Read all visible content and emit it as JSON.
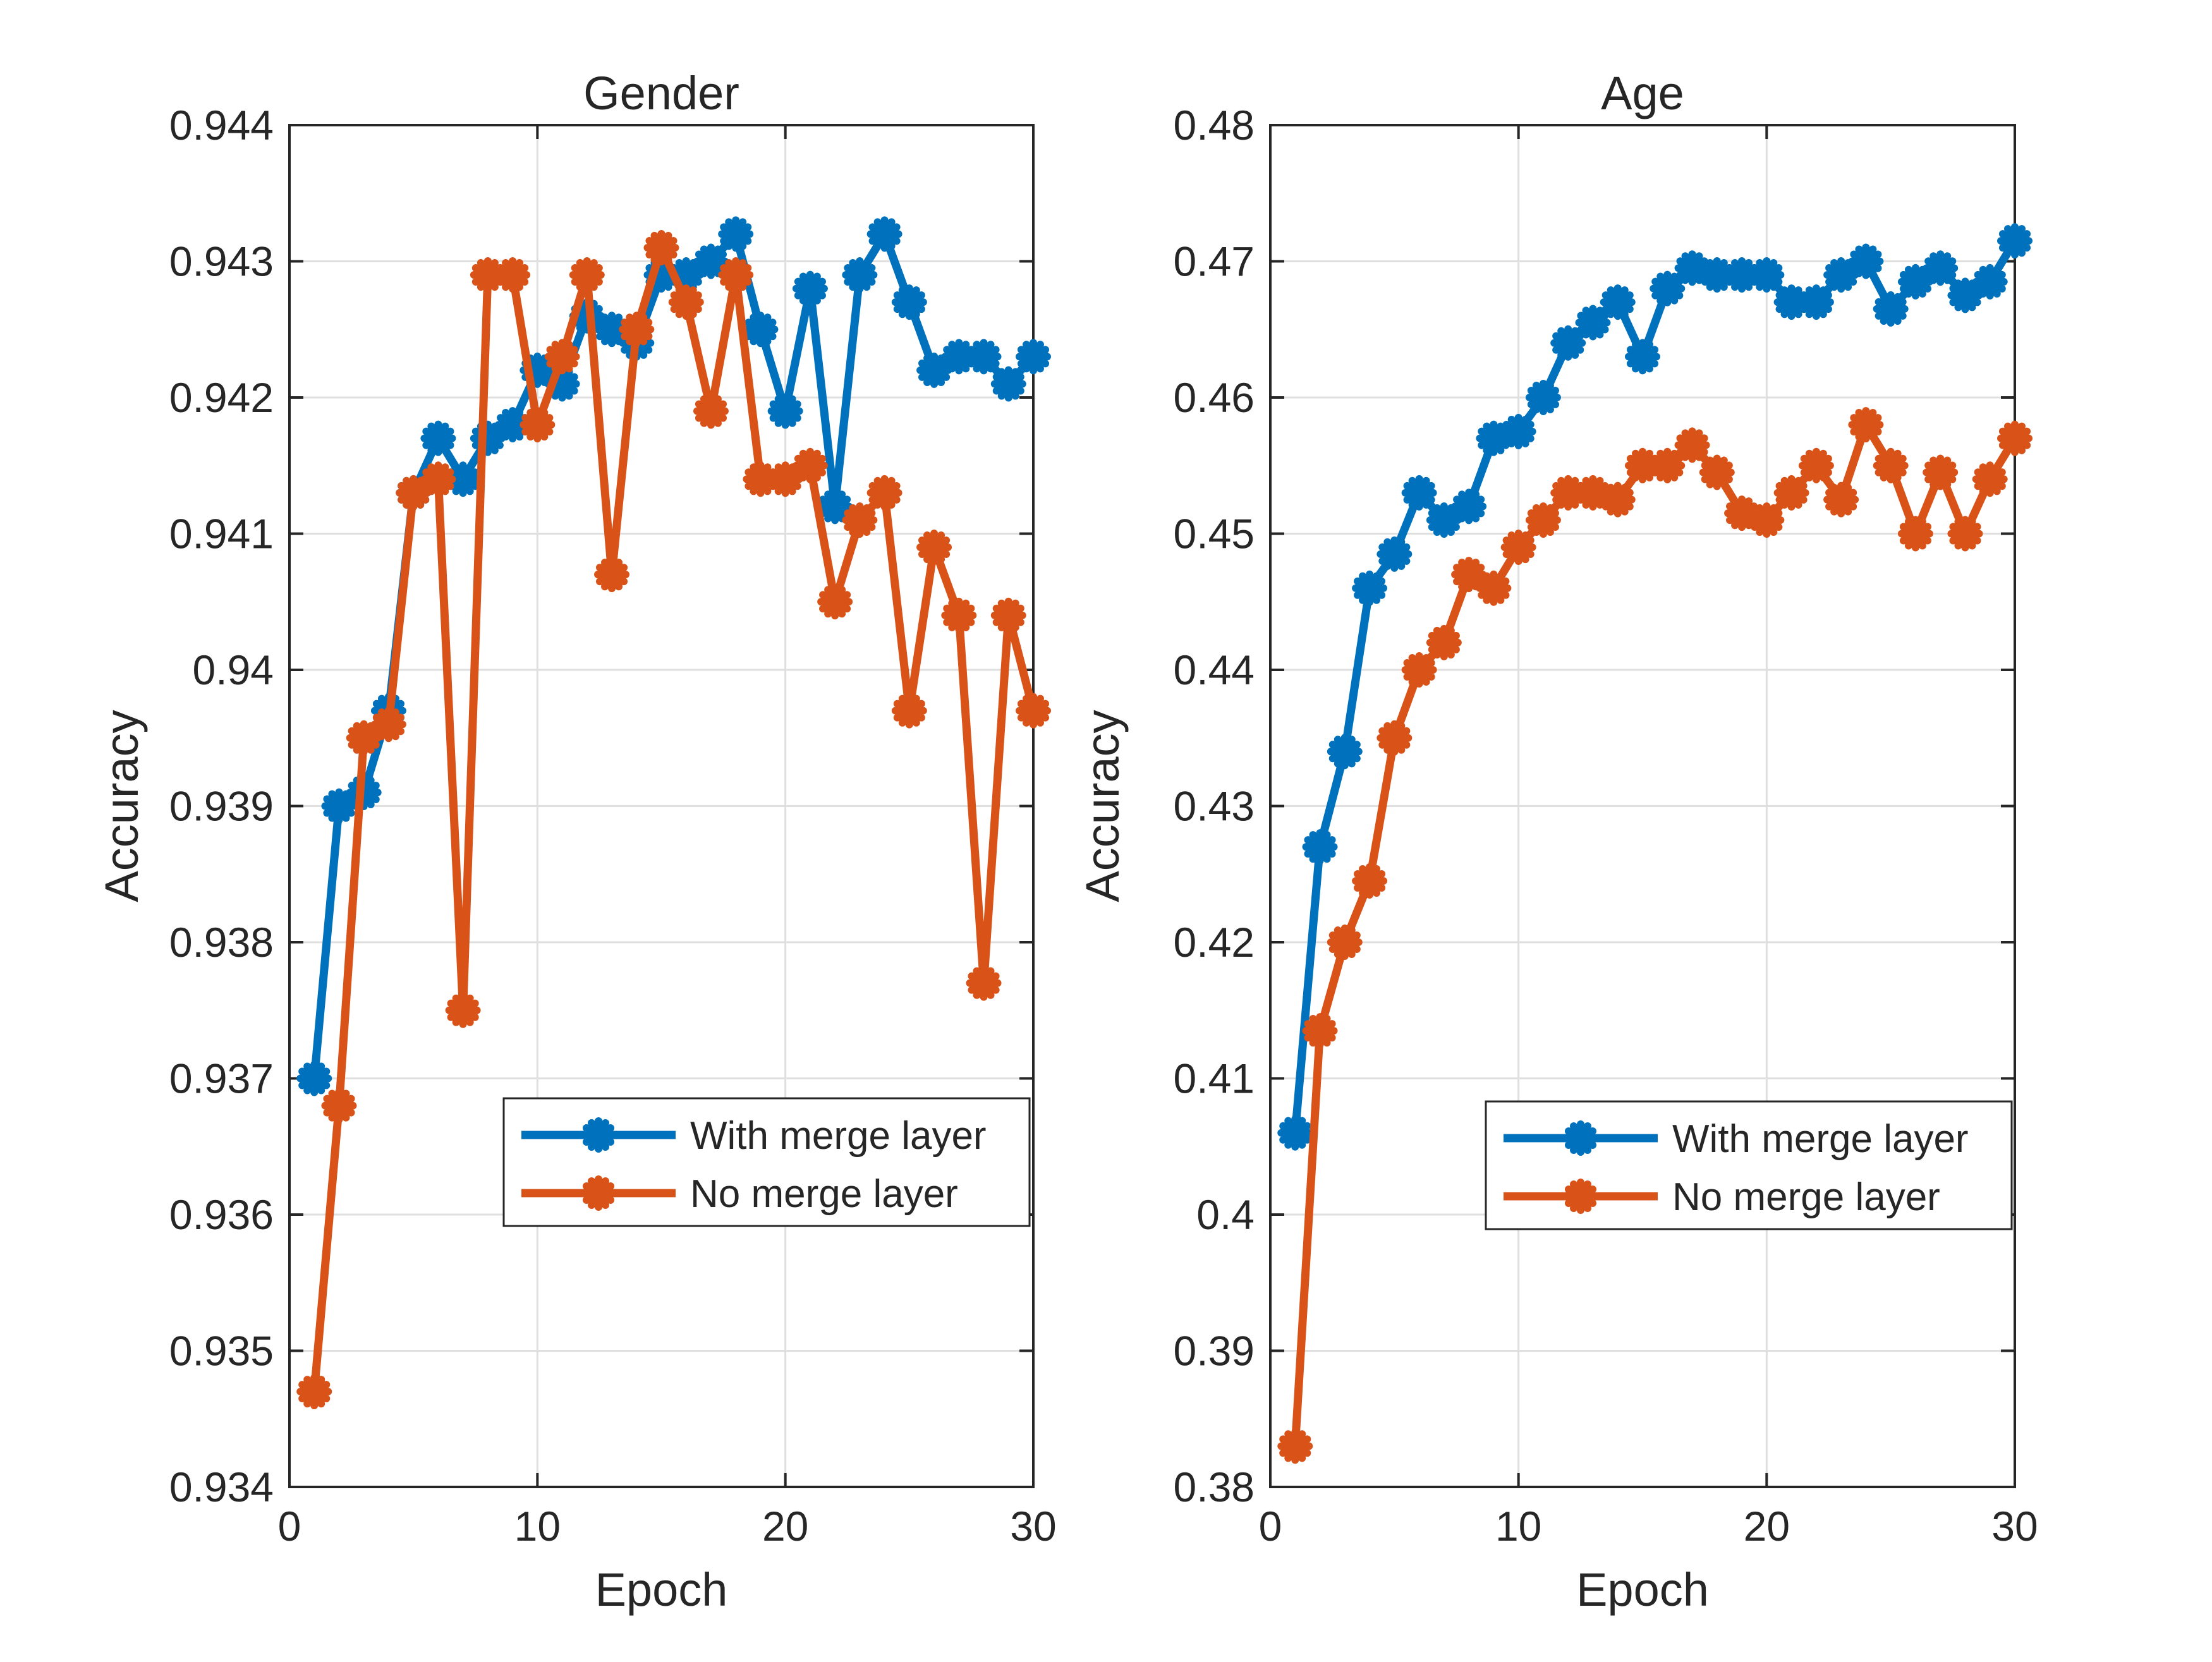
{
  "figure": {
    "background": "#ffffff",
    "axis_color": "#262626",
    "grid_color": "#dfdfdf"
  },
  "chart_data": [
    {
      "type": "line",
      "title": "Gender",
      "xlabel": "Epoch",
      "ylabel": "Accuracy",
      "xlim": [
        0,
        30
      ],
      "ylim": [
        0.934,
        0.944
      ],
      "xticks": [
        0,
        10,
        20,
        30
      ],
      "xtick_labels": [
        "0",
        "10",
        "20",
        "30"
      ],
      "yticks": [
        0.934,
        0.935,
        0.936,
        0.937,
        0.938,
        0.939,
        0.94,
        0.941,
        0.942,
        0.943,
        0.944
      ],
      "ytick_labels": [
        "0.934",
        "0.935",
        "0.936",
        "0.937",
        "0.938",
        "0.939",
        "0.94",
        "0.941",
        "0.942",
        "0.943",
        "0.944"
      ],
      "grid": true,
      "legend_position": "lower-right",
      "x": [
        1,
        2,
        3,
        4,
        5,
        6,
        7,
        8,
        9,
        10,
        11,
        12,
        13,
        14,
        15,
        16,
        17,
        18,
        19,
        20,
        21,
        22,
        23,
        24,
        25,
        26,
        27,
        28,
        29,
        30
      ],
      "series": [
        {
          "name": "With merge layer",
          "color": "#0072BD",
          "values": [
            0.937,
            0.939,
            0.9391,
            0.9397,
            0.9413,
            0.9417,
            0.9414,
            0.9417,
            0.9418,
            0.9422,
            0.9421,
            0.9426,
            0.9425,
            0.9424,
            0.9429,
            0.9429,
            0.943,
            0.9432,
            0.9425,
            0.9419,
            0.9428,
            0.9412,
            0.9429,
            0.9432,
            0.9427,
            0.9422,
            0.9423,
            0.9423,
            0.9421,
            0.9423
          ]
        },
        {
          "name": "No merge layer",
          "color": "#D95319",
          "values": [
            0.9347,
            0.9368,
            0.9395,
            0.9396,
            0.9413,
            0.9414,
            0.9375,
            0.9429,
            0.9429,
            0.9418,
            0.9423,
            0.9429,
            0.9407,
            0.9425,
            0.9431,
            0.9427,
            0.9419,
            0.9429,
            0.9414,
            0.9414,
            0.9415,
            0.9405,
            0.9411,
            0.9413,
            0.9397,
            0.9409,
            0.9404,
            0.9377,
            0.9404,
            0.9397
          ]
        }
      ]
    },
    {
      "type": "line",
      "title": "Age",
      "xlabel": "Epoch",
      "ylabel": "Accuracy",
      "xlim": [
        0,
        30
      ],
      "ylim": [
        0.38,
        0.48
      ],
      "xticks": [
        0,
        10,
        20,
        30
      ],
      "xtick_labels": [
        "0",
        "10",
        "20",
        "30"
      ],
      "yticks": [
        0.38,
        0.39,
        0.4,
        0.41,
        0.42,
        0.43,
        0.44,
        0.45,
        0.46,
        0.47,
        0.48
      ],
      "ytick_labels": [
        "0.38",
        "0.39",
        "0.4",
        "0.41",
        "0.42",
        "0.43",
        "0.44",
        "0.45",
        "0.46",
        "0.47",
        "0.48"
      ],
      "grid": true,
      "legend_position": "lower-right",
      "x": [
        1,
        2,
        3,
        4,
        5,
        6,
        7,
        8,
        9,
        10,
        11,
        12,
        13,
        14,
        15,
        16,
        17,
        18,
        19,
        20,
        21,
        22,
        23,
        24,
        25,
        26,
        27,
        28,
        29,
        30
      ],
      "series": [
        {
          "name": "With merge layer",
          "color": "#0072BD",
          "values": [
            0.406,
            0.427,
            0.434,
            0.446,
            0.4485,
            0.453,
            0.451,
            0.452,
            0.457,
            0.4575,
            0.46,
            0.464,
            0.4655,
            0.467,
            0.463,
            0.468,
            0.4695,
            0.469,
            0.469,
            0.469,
            0.467,
            0.467,
            0.469,
            0.47,
            0.4665,
            0.4685,
            0.4695,
            0.4675,
            0.4685,
            0.4715
          ]
        },
        {
          "name": "No merge layer",
          "color": "#D95319",
          "values": [
            0.383,
            0.4135,
            0.42,
            0.4245,
            0.435,
            0.44,
            0.442,
            0.447,
            0.446,
            0.449,
            0.451,
            0.453,
            0.453,
            0.4525,
            0.455,
            0.455,
            0.4565,
            0.4545,
            0.4515,
            0.451,
            0.453,
            0.455,
            0.4525,
            0.458,
            0.455,
            0.45,
            0.4545,
            0.45,
            0.454,
            0.457
          ]
        }
      ]
    }
  ]
}
